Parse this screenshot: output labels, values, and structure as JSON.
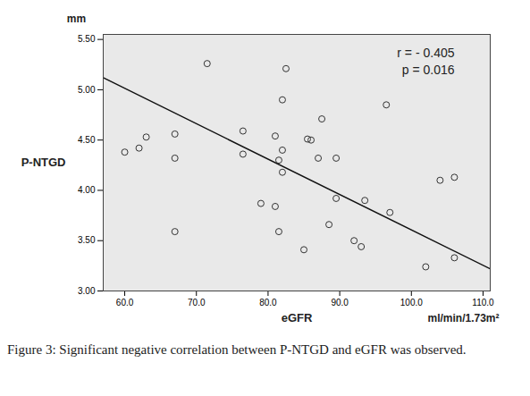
{
  "chart_data": {
    "type": "scatter",
    "caption": "Figure 3: Significant negative correlation between P-NTGD and eGFR was observed.",
    "y_label": "P-NTGD",
    "y_unit": "mm",
    "x_label": "eGFR",
    "x_unit": "ml/min/1.73m²",
    "annotations": [
      "r = - 0.405",
      "p = 0.016"
    ],
    "x": [
      60,
      62,
      63,
      67,
      67,
      67,
      71.5,
      76.5,
      76.5,
      79,
      81,
      81,
      81.5,
      82,
      82,
      81.5,
      82.5,
      82,
      85.5,
      86,
      87,
      87.5,
      85,
      88.5,
      89.5,
      89.5,
      92,
      93,
      93.5,
      97,
      96.5,
      104,
      106,
      102,
      106
    ],
    "values": [
      4.38,
      4.42,
      4.53,
      4.56,
      4.32,
      3.59,
      5.26,
      4.59,
      4.36,
      3.87,
      4.54,
      3.84,
      4.3,
      4.4,
      4.18,
      3.59,
      5.21,
      4.9,
      4.51,
      4.5,
      4.32,
      4.71,
      3.41,
      3.66,
      4.32,
      3.92,
      3.5,
      3.44,
      3.9,
      3.78,
      4.85,
      4.1,
      4.13,
      3.24,
      3.33
    ],
    "fit_line": {
      "x": [
        57,
        111
      ],
      "y": [
        5.12,
        3.22
      ]
    },
    "color": "#333333",
    "marker": "open-circle",
    "xlim": [
      57,
      111
    ],
    "ylim": [
      3.0,
      5.55
    ],
    "xticks": [
      {
        "value": 60,
        "label": "60.0"
      },
      {
        "value": 70,
        "label": "70.0"
      },
      {
        "value": 80,
        "label": "80.0"
      },
      {
        "value": 90,
        "label": "90.0"
      },
      {
        "value": 100,
        "label": "100.0"
      },
      {
        "value": 110,
        "label": "110.0"
      }
    ],
    "yticks": [
      {
        "value": 3.0,
        "label": "3.00"
      },
      {
        "value": 3.5,
        "label": "3.50"
      },
      {
        "value": 4.0,
        "label": "4.00"
      },
      {
        "value": 4.5,
        "label": "4.50"
      },
      {
        "value": 5.0,
        "label": "5.00"
      },
      {
        "value": 5.5,
        "label": "5.50"
      }
    ],
    "grid": false
  }
}
